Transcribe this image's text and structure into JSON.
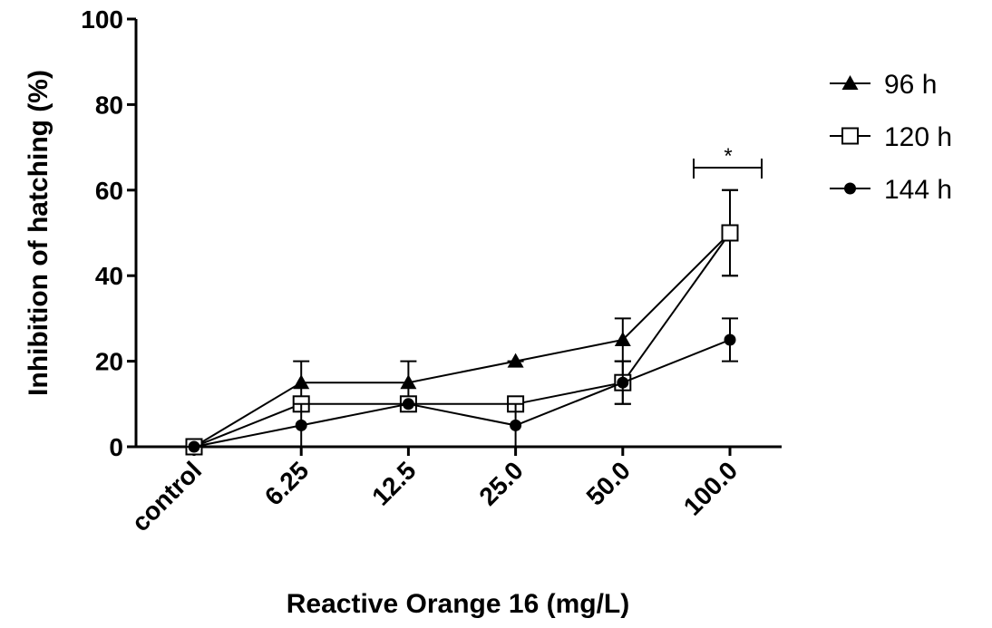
{
  "chart_data": {
    "type": "line",
    "x_label": "Reactive Orange 16 (mg/L)",
    "y_label": "Inhibition of hatching (%)",
    "categories": [
      "control",
      "6.25",
      "12.5",
      "25.0",
      "50.0",
      "100.0"
    ],
    "ylim": [
      0,
      100
    ],
    "yticks": [
      0,
      20,
      40,
      60,
      80,
      100
    ],
    "annotations": [
      "*"
    ],
    "series": [
      {
        "name": "96 h",
        "color": "#000000",
        "marker": "triangle",
        "values": [
          0,
          15,
          15,
          20,
          25,
          50
        ],
        "errors": [
          0,
          5,
          5,
          0,
          5,
          10
        ]
      },
      {
        "name": "120 h",
        "color": "#000000",
        "marker": "square-open",
        "values": [
          0,
          10,
          10,
          10,
          15,
          50
        ],
        "errors": [
          0,
          0,
          0,
          0,
          5,
          10
        ]
      },
      {
        "name": "144 h",
        "color": "#000000",
        "marker": "circle",
        "values": [
          0,
          5,
          10,
          5,
          15,
          25
        ],
        "errors": [
          0,
          5,
          0,
          5,
          5,
          5
        ]
      }
    ]
  }
}
